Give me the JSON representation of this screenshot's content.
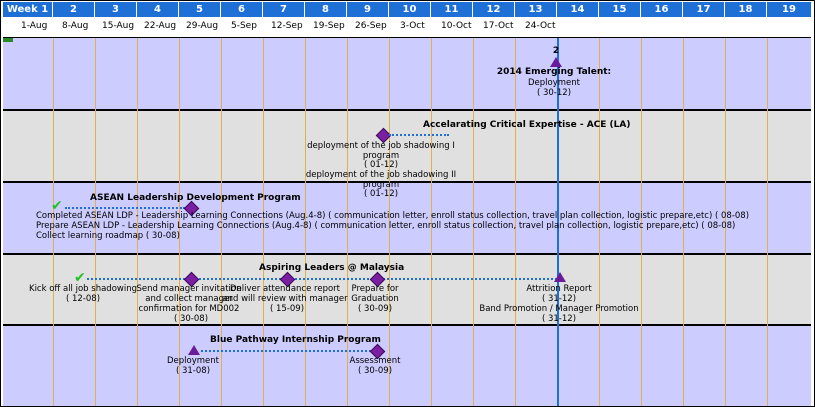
{
  "weeks": [
    "Week 1",
    "2",
    "3",
    "4",
    "5",
    "6",
    "7",
    "8",
    "9",
    "10",
    "11",
    "12",
    "13",
    "14",
    "15",
    "16",
    "17",
    "18",
    "19"
  ],
  "dates": [
    "1-Aug",
    "8-Aug",
    "15-Aug",
    "22-Aug",
    "29-Aug",
    "5-Sep",
    "12-Sep",
    "19-Sep",
    "26-Sep",
    "3-Oct",
    "10-Oct",
    "17-Oct",
    "24-Oct"
  ],
  "colors": {
    "header": "#1e6fd6",
    "lavender": "#ccccff",
    "gray": "#e0e0e0",
    "milestone": "#7b1fa2",
    "done": "#22c222",
    "gridline": "#e2b04a"
  },
  "rows": {
    "r1": {
      "number": "2",
      "title": "2014 Emerging Talent:",
      "item": "Deployment",
      "date": "( 30-12)"
    },
    "r2": {
      "title": "Accelarating Critical Expertise - ACE (LA)",
      "item1a": "deployment of the job shadowing I",
      "item1b": "program",
      "item1c": "( 01-12)",
      "item2a": "deployment of the job shadowing II",
      "item2b": "program",
      "item2c": "( 01-12)"
    },
    "r3": {
      "title": "ASEAN Leadership Development Program",
      "line1": "Completed ASEAN LDP - Leadership Learning Connections (Aug.4-8) ( communication letter, enroll status collection, travel plan collection, logistic prepare,etc) ( 08-08)",
      "line2": "Prepare ASEAN LDP - Leadership Learning Connections (Aug.4-8) ( communication letter, enroll status collection, travel plan collection, logistic prepare,etc) ( 08-08)",
      "line3": "Collect learning roadmap ( 30-08)"
    },
    "r4": {
      "title": "Aspiring Leaders @ Malaysia",
      "m1a": "Kick off all job shadowing",
      "m1b": "( 12-08)",
      "m2a": "Send manager invitation",
      "m2b": "and collect manager",
      "m2c": "confirmation for MD002",
      "m2d": "( 30-08)",
      "m3a": "Deliver attendance report",
      "m3b": "and will review with manager",
      "m3c": "( 15-09)",
      "m4a": "Prepare for",
      "m4b": "Graduation",
      "m4c": "( 30-09)",
      "m5a": "Attrition Report",
      "m5b": "( 31-12)",
      "m6a": "Band Promotion / Manager Promotion",
      "m6b": "( 31-12)"
    },
    "r5": {
      "title": "Blue Pathway Internship Program",
      "m1a": "Deployment",
      "m1b": "( 31-08)",
      "m2a": "Assessment",
      "m2b": "( 30-09)"
    }
  }
}
